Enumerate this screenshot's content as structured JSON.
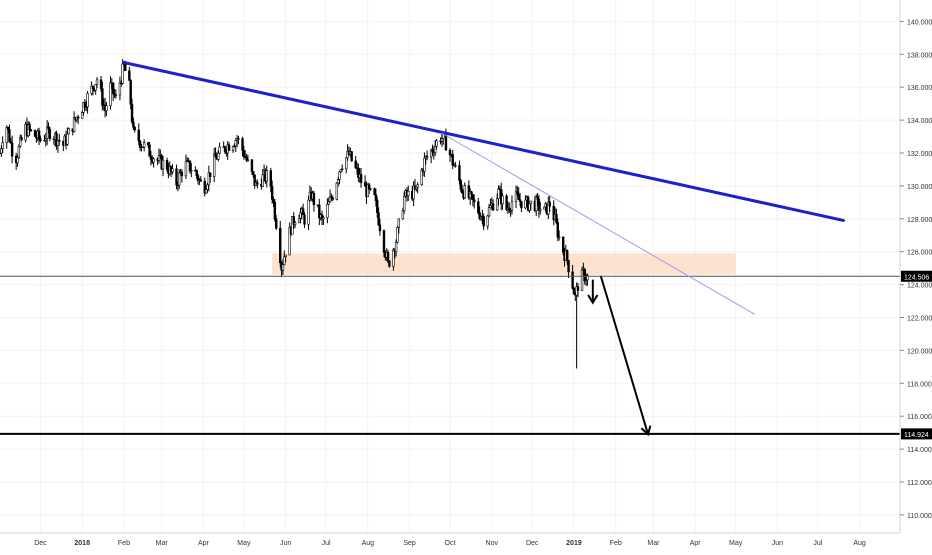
{
  "chart_data": {
    "type": "candlestick",
    "price_axis": {
      "range": [
        108.9,
        141.3
      ],
      "tick_values": [
        110,
        112,
        114,
        116,
        118,
        120,
        122,
        124,
        126,
        128,
        130,
        132,
        134,
        136,
        138,
        140
      ],
      "tick_labels": [
        "110.000",
        "112.000",
        "114.000",
        "116.000",
        "118.000",
        "120.000",
        "122.000",
        "124.000",
        "126.000",
        "128.000",
        "130.000",
        "132.000",
        "134.000",
        "136.000",
        "138.000",
        "140.000"
      ]
    },
    "time_axis": {
      "range": [
        "2017-11-01",
        "2019-08-31"
      ],
      "ticks": [
        {
          "date": "2017-12-01",
          "label": "Dec",
          "bold": false
        },
        {
          "date": "2018-01-01",
          "label": "2018",
          "bold": true
        },
        {
          "date": "2018-02-01",
          "label": "Feb",
          "bold": false
        },
        {
          "date": "2018-03-01",
          "label": "Mar",
          "bold": false
        },
        {
          "date": "2018-04-01",
          "label": "Apr",
          "bold": false
        },
        {
          "date": "2018-05-01",
          "label": "May",
          "bold": false
        },
        {
          "date": "2018-06-01",
          "label": "Jun",
          "bold": false
        },
        {
          "date": "2018-07-01",
          "label": "Jul",
          "bold": false
        },
        {
          "date": "2018-08-01",
          "label": "Aug",
          "bold": false
        },
        {
          "date": "2018-09-01",
          "label": "Sep",
          "bold": false
        },
        {
          "date": "2018-10-01",
          "label": "Oct",
          "bold": false
        },
        {
          "date": "2018-11-01",
          "label": "Nov",
          "bold": false
        },
        {
          "date": "2018-12-01",
          "label": "Dec",
          "bold": false
        },
        {
          "date": "2019-01-01",
          "label": "2019",
          "bold": true
        },
        {
          "date": "2019-02-01",
          "label": "Feb",
          "bold": false
        },
        {
          "date": "2019-03-01",
          "label": "Mar",
          "bold": false
        },
        {
          "date": "2019-04-01",
          "label": "Apr",
          "bold": false
        },
        {
          "date": "2019-05-01",
          "label": "May",
          "bold": false
        },
        {
          "date": "2019-06-01",
          "label": "Jun",
          "bold": false
        },
        {
          "date": "2019-07-01",
          "label": "Jul",
          "bold": false
        },
        {
          "date": "2019-08-01",
          "label": "Aug",
          "bold": false
        }
      ]
    },
    "price_path": [
      [
        "2017-11-01",
        132.0
      ],
      [
        "2017-11-05",
        134.0
      ],
      [
        "2017-11-12",
        131.5
      ],
      [
        "2017-11-20",
        133.5
      ],
      [
        "2017-12-01",
        132.8
      ],
      [
        "2017-12-08",
        133.3
      ],
      [
        "2017-12-18",
        132.5
      ],
      [
        "2017-12-28",
        134.2
      ],
      [
        "2018-01-05",
        135.4
      ],
      [
        "2018-01-12",
        136.5
      ],
      [
        "2018-01-18",
        134.6
      ],
      [
        "2018-01-22",
        136.0
      ],
      [
        "2018-01-26",
        135.3
      ],
      [
        "2018-02-01",
        137.3
      ],
      [
        "2018-02-05",
        136.0
      ],
      [
        "2018-02-08",
        133.2
      ],
      [
        "2018-02-15",
        132.5
      ],
      [
        "2018-02-25",
        131.6
      ],
      [
        "2018-03-05",
        131.2
      ],
      [
        "2018-03-12",
        130.2
      ],
      [
        "2018-03-18",
        131.3
      ],
      [
        "2018-03-25",
        131.0
      ],
      [
        "2018-04-01",
        129.8
      ],
      [
        "2018-04-10",
        131.7
      ],
      [
        "2018-04-18",
        132.4
      ],
      [
        "2018-04-26",
        132.9
      ],
      [
        "2018-05-01",
        132.0
      ],
      [
        "2018-05-10",
        130.0
      ],
      [
        "2018-05-15",
        130.5
      ],
      [
        "2018-05-20",
        130.6
      ],
      [
        "2018-05-25",
        127.8
      ],
      [
        "2018-05-29",
        125.1
      ],
      [
        "2018-06-05",
        127.5
      ],
      [
        "2018-06-10",
        128.5
      ],
      [
        "2018-06-15",
        128.0
      ],
      [
        "2018-06-20",
        129.5
      ],
      [
        "2018-06-28",
        127.8
      ],
      [
        "2018-07-06",
        129.5
      ],
      [
        "2018-07-12",
        131.3
      ],
      [
        "2018-07-18",
        131.9
      ],
      [
        "2018-07-24",
        130.8
      ],
      [
        "2018-07-30",
        129.8
      ],
      [
        "2018-08-06",
        129.2
      ],
      [
        "2018-08-13",
        126.4
      ],
      [
        "2018-08-16",
        125.2
      ],
      [
        "2018-08-22",
        126.7
      ],
      [
        "2018-08-28",
        129.3
      ],
      [
        "2018-09-06",
        129.7
      ],
      [
        "2018-09-12",
        131.5
      ],
      [
        "2018-09-20",
        132.5
      ],
      [
        "2018-09-24",
        133.0
      ],
      [
        "2018-09-28",
        132.6
      ],
      [
        "2018-10-05",
        131.0
      ],
      [
        "2018-10-10",
        129.8
      ],
      [
        "2018-10-18",
        129.0
      ],
      [
        "2018-10-26",
        128.0
      ],
      [
        "2018-11-01",
        128.8
      ],
      [
        "2018-11-06",
        129.6
      ],
      [
        "2018-11-12",
        128.6
      ],
      [
        "2018-11-18",
        129.3
      ],
      [
        "2018-11-26",
        128.9
      ],
      [
        "2018-12-04",
        128.9
      ],
      [
        "2018-12-10",
        128.4
      ],
      [
        "2018-12-14",
        128.9
      ],
      [
        "2018-12-18",
        127.9
      ],
      [
        "2018-12-22",
        126.5
      ],
      [
        "2018-12-27",
        125.5
      ],
      [
        "2018-12-31",
        124.0
      ],
      [
        "2019-01-02",
        123.2
      ],
      [
        "2019-01-04",
        124.0
      ],
      [
        "2019-01-08",
        124.6
      ],
      [
        "2019-01-12",
        124.4
      ]
    ],
    "candle_overrides": [
      {
        "date": "2019-01-03",
        "low": 118.9
      },
      {
        "date": "2018-02-01",
        "high": 137.6
      }
    ],
    "current_price": {
      "value": 124.506,
      "label": "124.506"
    },
    "target_level": {
      "value": 114.924,
      "label": "114.924"
    },
    "support_zone": {
      "price_low": 124.6,
      "price_high": 125.9,
      "date_start": "2018-05-22",
      "date_end": "2019-05-01",
      "color": "#fde3cd"
    },
    "trendlines": [
      {
        "name": "major-downtrend",
        "start": [
          "2018-02-01",
          137.5
        ],
        "end": [
          "2019-07-20",
          127.9
        ],
        "color": "#1a22cc",
        "width": 3
      },
      {
        "name": "minor-downtrend",
        "start": [
          "2018-09-25",
          133.2
        ],
        "end": [
          "2019-05-15",
          122.2
        ],
        "color": "#9c9cf0",
        "width": 1
      }
    ],
    "projection_arrows": [
      {
        "name": "short-arrow",
        "start": [
          "2019-01-15",
          124.3
        ],
        "end": [
          "2019-01-15",
          122.9
        ]
      },
      {
        "name": "long-arrow",
        "start": [
          "2019-01-21",
          124.5
        ],
        "end": [
          "2019-02-25",
          114.9
        ]
      }
    ],
    "colors": {
      "candle": "#000000",
      "grid": "#f2f2f2",
      "axis_text": "#333333",
      "label_bg": "#000000",
      "label_text": "#ffffff"
    },
    "grid": true
  }
}
